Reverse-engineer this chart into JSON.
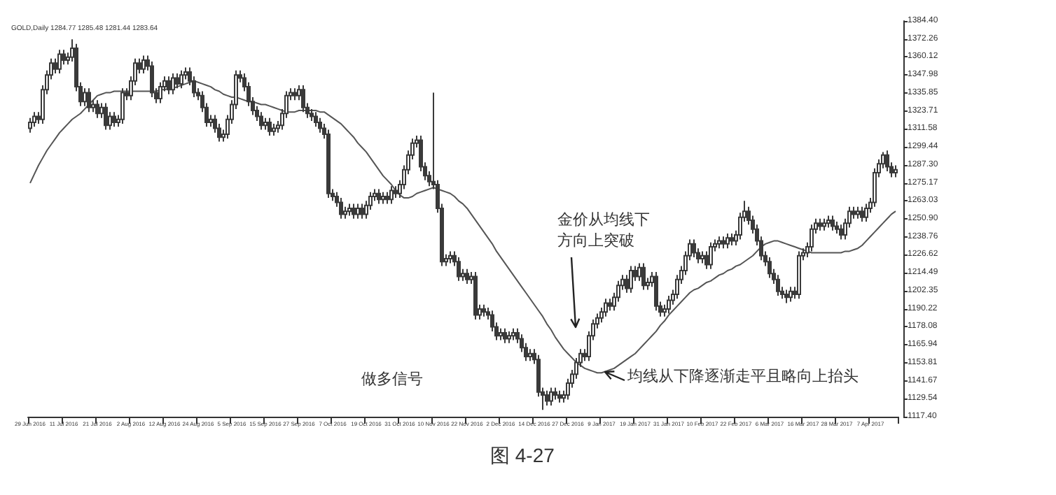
{
  "chart_data": {
    "type": "candlestick",
    "title": "GOLD,Daily 1284.77 1285.48 1281.44 1283.64",
    "annotations": [
      "金价从均线下方向上突破",
      "均线从下降逐渐走平且略向上抬头",
      "做多信号",
      "图 4-27"
    ],
    "categories": [
      "29 Jun 2016",
      null,
      null,
      null,
      null,
      null,
      null,
      null,
      "11 Jul 2016",
      null,
      null,
      null,
      null,
      null,
      null,
      null,
      "21 Jul 2016",
      null,
      null,
      null,
      null,
      null,
      null,
      null,
      "2 Aug 2016",
      null,
      null,
      null,
      null,
      null,
      null,
      null,
      "12 Aug 2016",
      null,
      null,
      null,
      null,
      null,
      null,
      null,
      "24 Aug 2016",
      null,
      null,
      null,
      null,
      null,
      null,
      null,
      "5 Sep 2016",
      null,
      null,
      null,
      null,
      null,
      null,
      null,
      "15 Sep 2016",
      null,
      null,
      null,
      null,
      null,
      null,
      null,
      "27 Sep 2016",
      null,
      null,
      null,
      null,
      null,
      null,
      null,
      "7 Oct 2016",
      null,
      null,
      null,
      null,
      null,
      null,
      null,
      "19 Oct 2016",
      null,
      null,
      null,
      null,
      null,
      null,
      null,
      "31 Oct 2016",
      null,
      null,
      null,
      null,
      null,
      null,
      null,
      "10 Nov 2016",
      null,
      null,
      null,
      null,
      null,
      null,
      null,
      "22 Nov 2016",
      null,
      null,
      null,
      null,
      null,
      null,
      null,
      "2 Dec 2016",
      null,
      null,
      null,
      null,
      null,
      null,
      null,
      "14 Dec 2016",
      null,
      null,
      null,
      null,
      null,
      null,
      null,
      "27 Dec 2016",
      null,
      null,
      null,
      null,
      null,
      null,
      null,
      "9 Jan 2017",
      null,
      null,
      null,
      null,
      null,
      null,
      null,
      "19 Jan 2017",
      null,
      null,
      null,
      null,
      null,
      null,
      null,
      "31 Jan 2017",
      null,
      null,
      null,
      null,
      null,
      null,
      null,
      "10 Feb 2017",
      null,
      null,
      null,
      null,
      null,
      null,
      null,
      "22 Feb 2017",
      null,
      null,
      null,
      null,
      null,
      null,
      null,
      "6 Mar 2017",
      null,
      null,
      null,
      null,
      null,
      null,
      null,
      "16 Mar 2017",
      null,
      null,
      null,
      null,
      null,
      null,
      null,
      "28 Mar 2017",
      null,
      null,
      null,
      null,
      null,
      null,
      null,
      "7 Apr 2017",
      null,
      null,
      null,
      null,
      null,
      null
    ],
    "ylim": [
      1117.4,
      1384.4
    ],
    "yticks": [
      {
        "value": 1117.4,
        "label": "1117.40"
      },
      {
        "value": 1129.54,
        "label": "1129.54"
      },
      {
        "value": 1141.67,
        "label": "1141.67"
      },
      {
        "value": 1153.81,
        "label": "1153.81"
      },
      {
        "value": 1165.94,
        "label": "1165.94"
      },
      {
        "value": 1178.08,
        "label": "1178.08"
      },
      {
        "value": 1190.22,
        "label": "1190.22"
      },
      {
        "value": 1202.35,
        "label": "1202.35"
      },
      {
        "value": 1214.49,
        "label": "1214.49"
      },
      {
        "value": 1226.62,
        "label": "1226.62"
      },
      {
        "value": 1238.76,
        "label": "1238.76"
      },
      {
        "value": 1250.9,
        "label": "1250.90"
      },
      {
        "value": 1263.03,
        "label": "1263.03"
      },
      {
        "value": 1275.17,
        "label": "1275.17"
      },
      {
        "value": 1287.3,
        "label": "1287.30"
      },
      {
        "value": 1299.44,
        "label": "1299.44"
      },
      {
        "value": 1311.58,
        "label": "1311.58"
      },
      {
        "value": 1323.71,
        "label": "1323.71"
      },
      {
        "value": 1335.85,
        "label": "1335.85"
      },
      {
        "value": 1347.98,
        "label": "1347.98"
      },
      {
        "value": 1360.12,
        "label": "1360.12"
      },
      {
        "value": 1372.26,
        "label": "1372.26"
      },
      {
        "value": 1384.4,
        "label": "1384.40"
      }
    ],
    "grid": false,
    "series": [
      {
        "color": "#3a3a3a",
        "ohlc": [
          [
            1312,
            1319,
            1309,
            1316
          ],
          [
            1316,
            1323,
            1313,
            1320
          ],
          [
            1320,
            1323,
            1315,
            1318
          ],
          [
            1318,
            1341,
            1315,
            1338
          ],
          [
            1338,
            1351,
            1335,
            1348
          ],
          [
            1348,
            1359,
            1345,
            1356
          ],
          [
            1356,
            1359,
            1349,
            1352
          ],
          [
            1352,
            1365,
            1349,
            1362
          ],
          [
            1362,
            1365,
            1355,
            1358
          ],
          [
            1358,
            1363,
            1355,
            1360
          ],
          [
            1360,
            1372,
            1357,
            1366
          ],
          [
            1366,
            1369,
            1337,
            1340
          ],
          [
            1340,
            1343,
            1327,
            1330
          ],
          [
            1330,
            1339,
            1327,
            1336
          ],
          [
            1336,
            1339,
            1323,
            1326
          ],
          [
            1326,
            1331,
            1323,
            1328
          ],
          [
            1328,
            1331,
            1319,
            1322
          ],
          [
            1322,
            1329,
            1319,
            1326
          ],
          [
            1326,
            1329,
            1311,
            1314
          ],
          [
            1314,
            1323,
            1311,
            1320
          ],
          [
            1320,
            1323,
            1313,
            1316
          ],
          [
            1316,
            1321,
            1313,
            1318
          ],
          [
            1318,
            1339,
            1315,
            1336
          ],
          [
            1336,
            1339,
            1331,
            1334
          ],
          [
            1334,
            1347,
            1331,
            1344
          ],
          [
            1344,
            1359,
            1341,
            1356
          ],
          [
            1356,
            1359,
            1349,
            1352
          ],
          [
            1352,
            1361,
            1349,
            1358
          ],
          [
            1358,
            1361,
            1351,
            1354
          ],
          [
            1354,
            1357,
            1333,
            1336
          ],
          [
            1336,
            1339,
            1329,
            1332
          ],
          [
            1332,
            1343,
            1329,
            1340
          ],
          [
            1340,
            1347,
            1337,
            1344
          ],
          [
            1344,
            1347,
            1335,
            1338
          ],
          [
            1338,
            1349,
            1335,
            1346
          ],
          [
            1346,
            1349,
            1339,
            1342
          ],
          [
            1342,
            1351,
            1339,
            1348
          ],
          [
            1348,
            1353,
            1345,
            1350
          ],
          [
            1350,
            1353,
            1341,
            1344
          ],
          [
            1344,
            1347,
            1333,
            1336
          ],
          [
            1336,
            1339,
            1331,
            1334
          ],
          [
            1334,
            1337,
            1323,
            1326
          ],
          [
            1326,
            1329,
            1313,
            1316
          ],
          [
            1316,
            1321,
            1313,
            1318
          ],
          [
            1318,
            1321,
            1309,
            1312
          ],
          [
            1312,
            1315,
            1303,
            1306
          ],
          [
            1306,
            1311,
            1303,
            1308
          ],
          [
            1308,
            1321,
            1305,
            1318
          ],
          [
            1318,
            1331,
            1315,
            1328
          ],
          [
            1328,
            1351,
            1325,
            1348
          ],
          [
            1348,
            1351,
            1343,
            1346
          ],
          [
            1346,
            1349,
            1337,
            1340
          ],
          [
            1340,
            1343,
            1327,
            1330
          ],
          [
            1330,
            1333,
            1321,
            1324
          ],
          [
            1324,
            1327,
            1317,
            1320
          ],
          [
            1320,
            1323,
            1311,
            1314
          ],
          [
            1314,
            1319,
            1311,
            1316
          ],
          [
            1316,
            1319,
            1307,
            1310
          ],
          [
            1310,
            1315,
            1307,
            1312
          ],
          [
            1312,
            1317,
            1309,
            1314
          ],
          [
            1314,
            1325,
            1311,
            1322
          ],
          [
            1322,
            1337,
            1319,
            1334
          ],
          [
            1334,
            1339,
            1331,
            1336
          ],
          [
            1336,
            1339,
            1331,
            1334
          ],
          [
            1334,
            1341,
            1331,
            1338
          ],
          [
            1338,
            1341,
            1323,
            1326
          ],
          [
            1326,
            1329,
            1319,
            1322
          ],
          [
            1322,
            1325,
            1317,
            1320
          ],
          [
            1320,
            1323,
            1313,
            1316
          ],
          [
            1316,
            1319,
            1309,
            1312
          ],
          [
            1312,
            1315,
            1305,
            1308
          ],
          [
            1308,
            1311,
            1265,
            1268
          ],
          [
            1268,
            1271,
            1263,
            1266
          ],
          [
            1266,
            1269,
            1259,
            1262
          ],
          [
            1262,
            1265,
            1251,
            1254
          ],
          [
            1254,
            1259,
            1251,
            1256
          ],
          [
            1256,
            1261,
            1253,
            1258
          ],
          [
            1258,
            1261,
            1251,
            1254
          ],
          [
            1254,
            1261,
            1251,
            1258
          ],
          [
            1258,
            1261,
            1251,
            1254
          ],
          [
            1254,
            1263,
            1251,
            1260
          ],
          [
            1260,
            1269,
            1257,
            1266
          ],
          [
            1266,
            1271,
            1263,
            1268
          ],
          [
            1268,
            1271,
            1261,
            1264
          ],
          [
            1264,
            1269,
            1261,
            1266
          ],
          [
            1266,
            1269,
            1261,
            1264
          ],
          [
            1264,
            1273,
            1261,
            1270
          ],
          [
            1270,
            1273,
            1265,
            1268
          ],
          [
            1268,
            1277,
            1265,
            1274
          ],
          [
            1274,
            1287,
            1271,
            1284
          ],
          [
            1284,
            1297,
            1281,
            1294
          ],
          [
            1294,
            1305,
            1291,
            1302
          ],
          [
            1302,
            1307,
            1299,
            1304
          ],
          [
            1304,
            1307,
            1283,
            1286
          ],
          [
            1286,
            1289,
            1277,
            1280
          ],
          [
            1280,
            1283,
            1273,
            1276
          ],
          [
            1276,
            1336,
            1271,
            1274
          ],
          [
            1274,
            1277,
            1255,
            1258
          ],
          [
            1258,
            1261,
            1219,
            1222
          ],
          [
            1222,
            1227,
            1219,
            1224
          ],
          [
            1224,
            1229,
            1221,
            1226
          ],
          [
            1226,
            1229,
            1219,
            1222
          ],
          [
            1222,
            1225,
            1209,
            1212
          ],
          [
            1212,
            1217,
            1209,
            1214
          ],
          [
            1214,
            1217,
            1207,
            1210
          ],
          [
            1210,
            1215,
            1207,
            1212
          ],
          [
            1212,
            1215,
            1183,
            1186
          ],
          [
            1186,
            1193,
            1183,
            1190
          ],
          [
            1190,
            1193,
            1185,
            1188
          ],
          [
            1188,
            1191,
            1183,
            1186
          ],
          [
            1186,
            1189,
            1175,
            1178
          ],
          [
            1178,
            1181,
            1169,
            1172
          ],
          [
            1172,
            1177,
            1169,
            1174
          ],
          [
            1174,
            1177,
            1167,
            1170
          ],
          [
            1170,
            1175,
            1167,
            1172
          ],
          [
            1172,
            1177,
            1169,
            1174
          ],
          [
            1174,
            1177,
            1167,
            1170
          ],
          [
            1170,
            1173,
            1161,
            1164
          ],
          [
            1164,
            1167,
            1155,
            1158
          ],
          [
            1158,
            1163,
            1155,
            1160
          ],
          [
            1160,
            1163,
            1153,
            1156
          ],
          [
            1156,
            1159,
            1131,
            1134
          ],
          [
            1134,
            1137,
            1122,
            1132
          ],
          [
            1132,
            1135,
            1125,
            1128
          ],
          [
            1128,
            1137,
            1125,
            1134
          ],
          [
            1134,
            1137,
            1129,
            1132
          ],
          [
            1132,
            1135,
            1127,
            1130
          ],
          [
            1130,
            1135,
            1127,
            1132
          ],
          [
            1132,
            1143,
            1129,
            1140
          ],
          [
            1140,
            1149,
            1137,
            1146
          ],
          [
            1146,
            1157,
            1143,
            1154
          ],
          [
            1154,
            1163,
            1151,
            1160
          ],
          [
            1160,
            1163,
            1155,
            1158
          ],
          [
            1158,
            1175,
            1155,
            1172
          ],
          [
            1172,
            1183,
            1169,
            1180
          ],
          [
            1180,
            1187,
            1177,
            1184
          ],
          [
            1184,
            1191,
            1181,
            1188
          ],
          [
            1188,
            1197,
            1185,
            1194
          ],
          [
            1194,
            1197,
            1189,
            1192
          ],
          [
            1192,
            1201,
            1189,
            1198
          ],
          [
            1198,
            1209,
            1195,
            1206
          ],
          [
            1206,
            1213,
            1203,
            1210
          ],
          [
            1210,
            1213,
            1201,
            1204
          ],
          [
            1204,
            1219,
            1201,
            1216
          ],
          [
            1216,
            1219,
            1209,
            1212
          ],
          [
            1212,
            1221,
            1209,
            1218
          ],
          [
            1218,
            1221,
            1203,
            1206
          ],
          [
            1206,
            1211,
            1203,
            1208
          ],
          [
            1208,
            1215,
            1205,
            1212
          ],
          [
            1212,
            1215,
            1189,
            1192
          ],
          [
            1192,
            1195,
            1185,
            1188
          ],
          [
            1188,
            1193,
            1185,
            1190
          ],
          [
            1190,
            1199,
            1187,
            1196
          ],
          [
            1196,
            1203,
            1193,
            1200
          ],
          [
            1200,
            1213,
            1197,
            1210
          ],
          [
            1210,
            1219,
            1207,
            1216
          ],
          [
            1216,
            1229,
            1213,
            1226
          ],
          [
            1226,
            1237,
            1223,
            1234
          ],
          [
            1234,
            1237,
            1225,
            1228
          ],
          [
            1228,
            1231,
            1221,
            1224
          ],
          [
            1224,
            1229,
            1221,
            1226
          ],
          [
            1226,
            1229,
            1217,
            1220
          ],
          [
            1220,
            1235,
            1217,
            1232
          ],
          [
            1232,
            1237,
            1229,
            1234
          ],
          [
            1234,
            1239,
            1231,
            1236
          ],
          [
            1236,
            1239,
            1231,
            1234
          ],
          [
            1234,
            1241,
            1231,
            1238
          ],
          [
            1238,
            1241,
            1233,
            1236
          ],
          [
            1236,
            1243,
            1233,
            1240
          ],
          [
            1240,
            1255,
            1237,
            1252
          ],
          [
            1252,
            1263,
            1249,
            1256
          ],
          [
            1256,
            1259,
            1247,
            1250
          ],
          [
            1250,
            1253,
            1241,
            1244
          ],
          [
            1244,
            1247,
            1233,
            1236
          ],
          [
            1236,
            1239,
            1223,
            1226
          ],
          [
            1226,
            1229,
            1219,
            1222
          ],
          [
            1222,
            1225,
            1211,
            1214
          ],
          [
            1214,
            1217,
            1207,
            1210
          ],
          [
            1210,
            1213,
            1199,
            1202
          ],
          [
            1202,
            1205,
            1197,
            1200
          ],
          [
            1200,
            1203,
            1194,
            1198
          ],
          [
            1198,
            1205,
            1195,
            1202
          ],
          [
            1202,
            1205,
            1197,
            1200
          ],
          [
            1200,
            1229,
            1197,
            1226
          ],
          [
            1226,
            1231,
            1223,
            1228
          ],
          [
            1228,
            1235,
            1225,
            1232
          ],
          [
            1232,
            1247,
            1229,
            1244
          ],
          [
            1244,
            1251,
            1241,
            1248
          ],
          [
            1248,
            1251,
            1243,
            1246
          ],
          [
            1246,
            1251,
            1243,
            1248
          ],
          [
            1248,
            1253,
            1245,
            1250
          ],
          [
            1250,
            1253,
            1243,
            1246
          ],
          [
            1246,
            1249,
            1241,
            1244
          ],
          [
            1244,
            1247,
            1237,
            1240
          ],
          [
            1240,
            1251,
            1237,
            1248
          ],
          [
            1248,
            1259,
            1245,
            1256
          ],
          [
            1256,
            1259,
            1251,
            1254
          ],
          [
            1254,
            1259,
            1251,
            1256
          ],
          [
            1256,
            1259,
            1249,
            1252
          ],
          [
            1252,
            1261,
            1249,
            1258
          ],
          [
            1258,
            1265,
            1255,
            1262
          ],
          [
            1262,
            1285,
            1259,
            1282
          ],
          [
            1282,
            1291,
            1279,
            1288
          ],
          [
            1288,
            1296,
            1285,
            1294
          ],
          [
            1294,
            1297,
            1283,
            1286
          ],
          [
            1286,
            1289,
            1279,
            1282
          ],
          [
            1282,
            1287,
            1279,
            1284
          ]
        ]
      },
      {
        "type": "line",
        "color": "#555555",
        "line_style": "solid",
        "marker": "none",
        "values": [
          1275,
          1281,
          1287,
          1292,
          1297,
          1301,
          1305,
          1309,
          1312,
          1315,
          1318,
          1320,
          1322,
          1325,
          1328,
          1331,
          1334,
          1335,
          1336,
          1336,
          1337,
          1337,
          1337,
          1337,
          1337,
          1337,
          1337,
          1337,
          1337,
          1337,
          1337,
          1338,
          1338,
          1339,
          1339,
          1340,
          1341,
          1342,
          1343,
          1344,
          1343,
          1342,
          1341,
          1340,
          1338,
          1337,
          1335,
          1334,
          1333,
          1333,
          1332,
          1331,
          1330,
          1330,
          1329,
          1328,
          1328,
          1327,
          1326,
          1325,
          1324,
          1323,
          1323,
          1323,
          1324,
          1324,
          1324,
          1324,
          1324,
          1323,
          1323,
          1321,
          1319,
          1317,
          1315,
          1312,
          1309,
          1306,
          1302,
          1299,
          1296,
          1292,
          1288,
          1284,
          1280,
          1277,
          1274,
          1270,
          1267,
          1265,
          1265,
          1266,
          1268,
          1269,
          1270,
          1271,
          1272,
          1271,
          1270,
          1269,
          1268,
          1266,
          1263,
          1261,
          1258,
          1254,
          1250,
          1246,
          1242,
          1238,
          1234,
          1229,
          1225,
          1221,
          1217,
          1213,
          1209,
          1205,
          1201,
          1197,
          1193,
          1189,
          1185,
          1180,
          1176,
          1171,
          1167,
          1163,
          1160,
          1157,
          1154,
          1152,
          1150,
          1149,
          1148,
          1147,
          1147,
          1148,
          1149,
          1150,
          1152,
          1154,
          1156,
          1158,
          1160,
          1163,
          1166,
          1169,
          1172,
          1175,
          1179,
          1182,
          1186,
          1189,
          1192,
          1195,
          1198,
          1201,
          1203,
          1204,
          1206,
          1208,
          1209,
          1211,
          1213,
          1214,
          1216,
          1217,
          1219,
          1220,
          1222,
          1224,
          1226,
          1229,
          1232,
          1234,
          1235,
          1236,
          1236,
          1235,
          1234,
          1233,
          1232,
          1231,
          1230,
          1229,
          1228,
          1228,
          1228,
          1228,
          1228,
          1228,
          1228,
          1228,
          1229,
          1229,
          1230,
          1231,
          1233,
          1236,
          1239,
          1242,
          1245,
          1248,
          1251,
          1254,
          1256
        ]
      }
    ]
  }
}
